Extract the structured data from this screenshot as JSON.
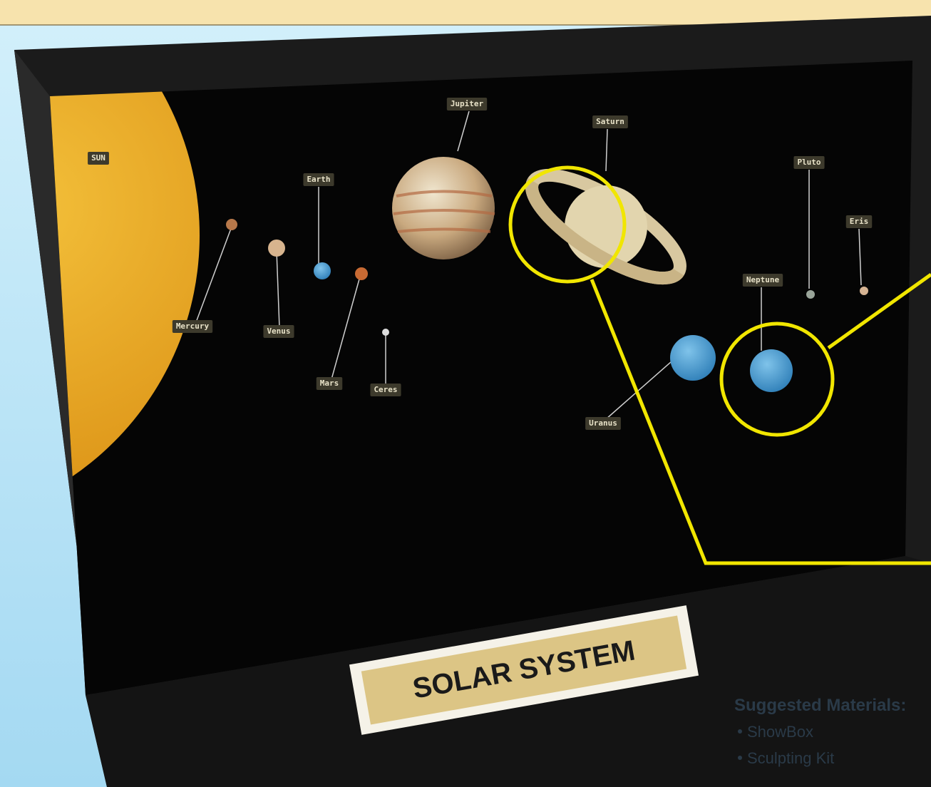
{
  "diorama": {
    "sign": "SOLAR SYSTEM",
    "planets": [
      {
        "label": "SUN"
      },
      {
        "label": "Mercury"
      },
      {
        "label": "Venus"
      },
      {
        "label": "Earth"
      },
      {
        "label": "Mars"
      },
      {
        "label": "Ceres"
      },
      {
        "label": "Jupiter"
      },
      {
        "label": "Saturn"
      },
      {
        "label": "Uranus"
      },
      {
        "label": "Neptune"
      },
      {
        "label": "Pluto"
      },
      {
        "label": "Eris"
      }
    ]
  },
  "materials": {
    "heading": "Suggested Materials:",
    "items": [
      "ShowBox",
      "Sculpting Kit"
    ]
  }
}
